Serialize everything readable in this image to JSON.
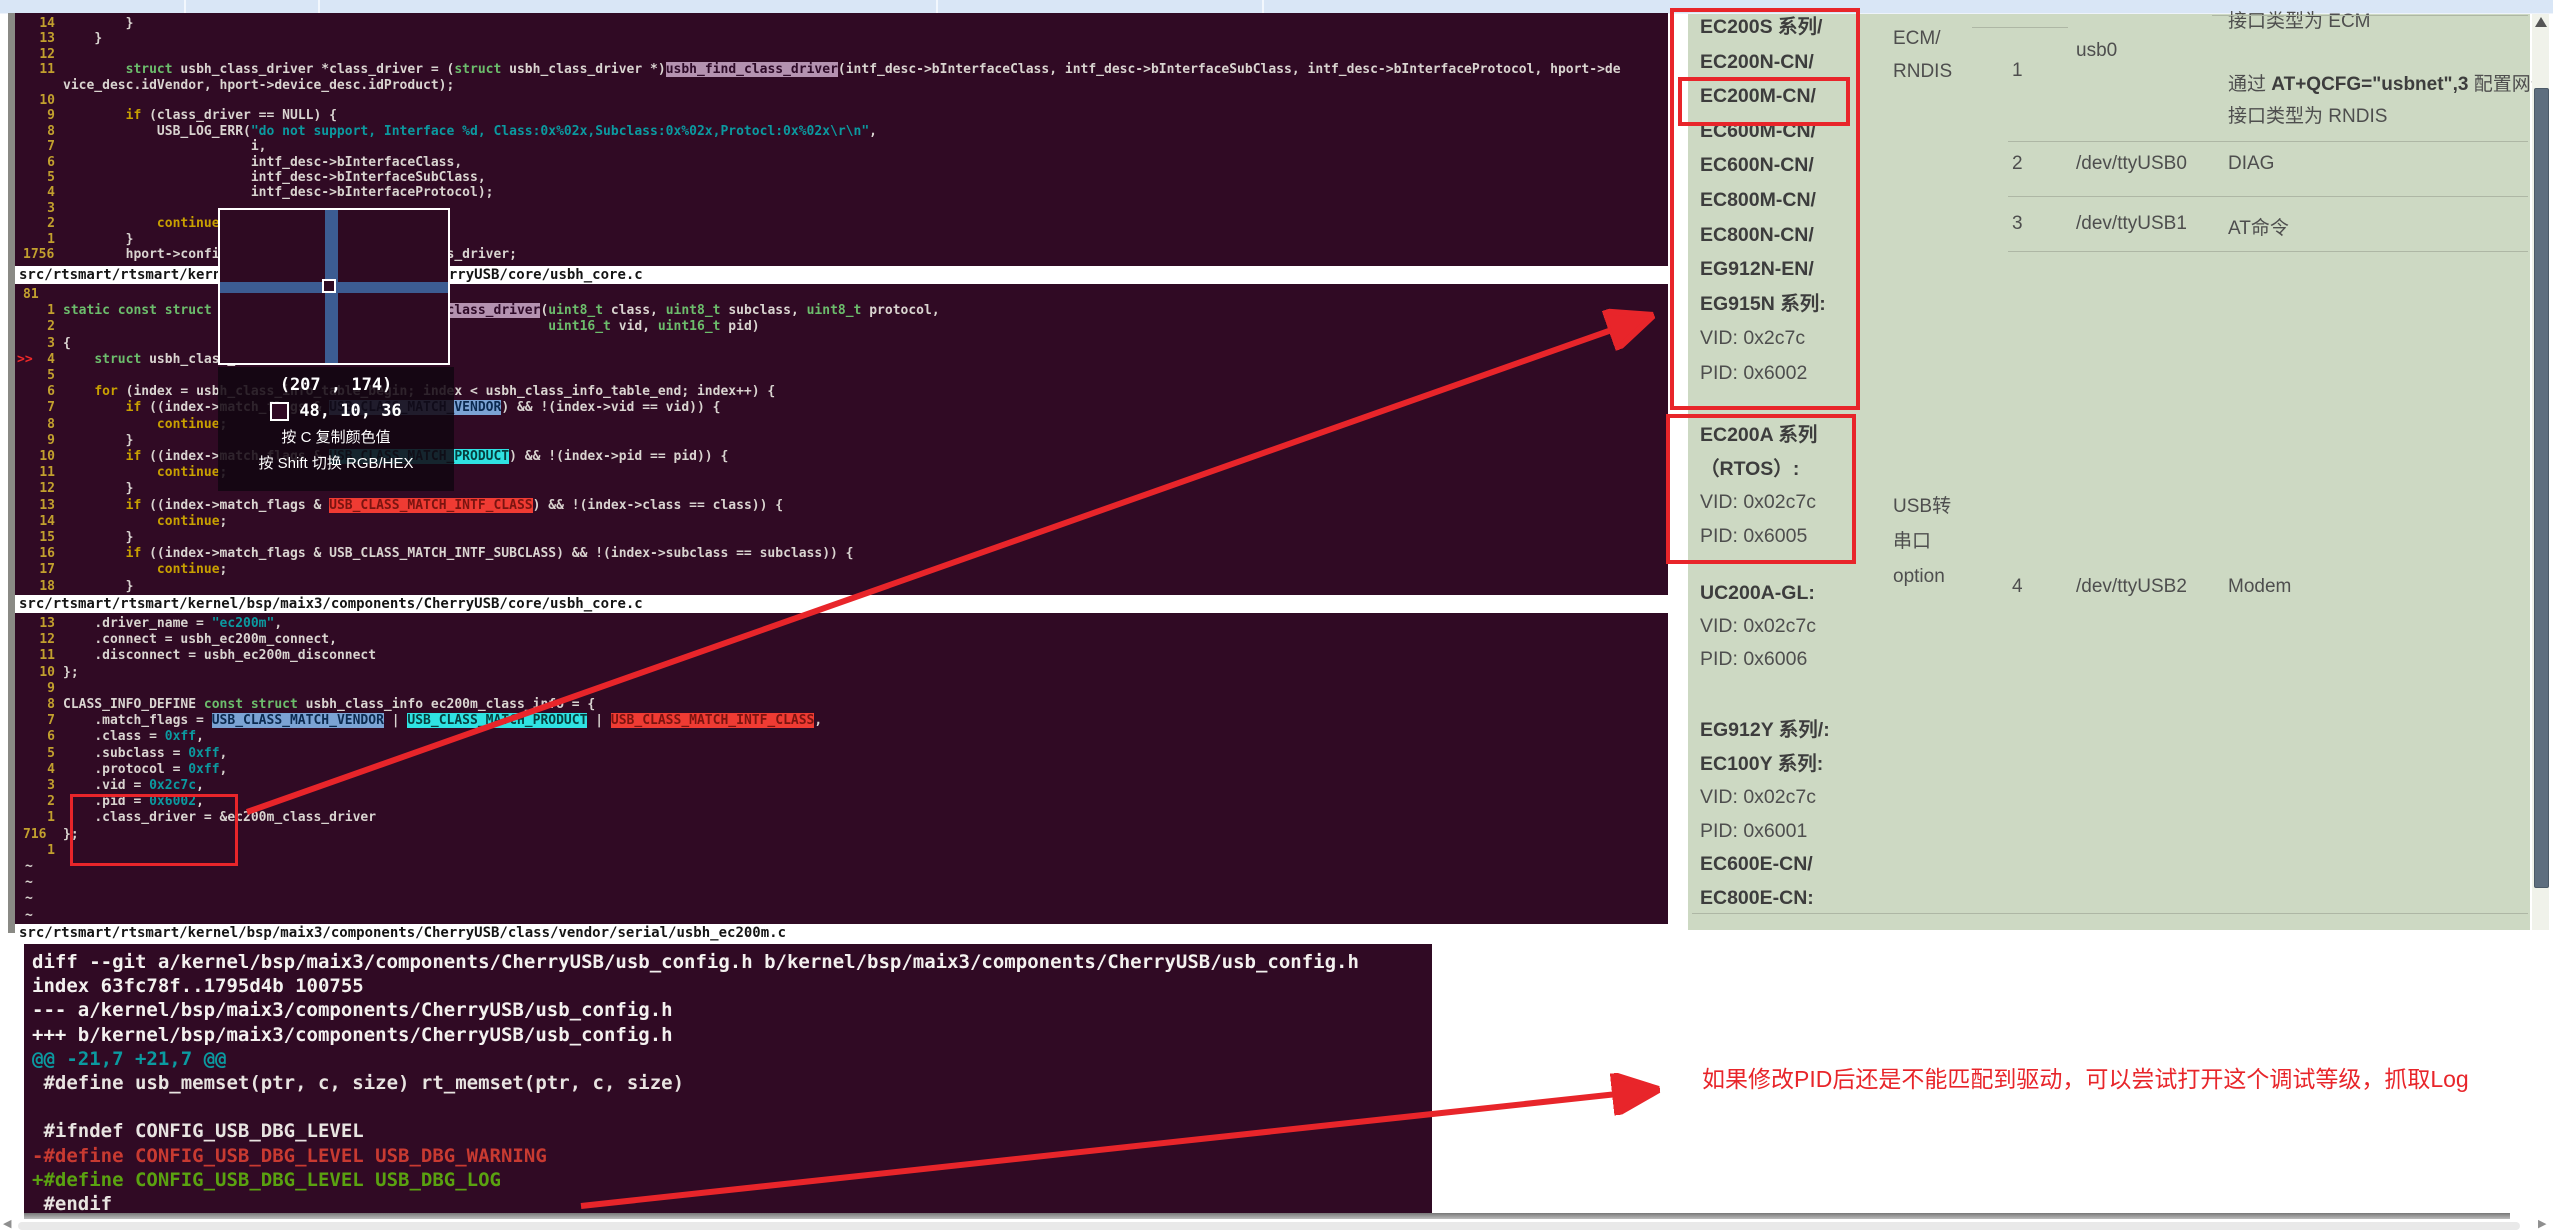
{
  "colors": {
    "red": "#e8252a",
    "term_bg": "#300a24",
    "table_bg": "#cdd9c3",
    "picker_swatch": "#300a24",
    "top_strip": "#d9e6f6"
  },
  "icons": {
    "scroll_up": "▲",
    "scroll_left": "◀",
    "scroll_right": "▶"
  },
  "picker": {
    "coords": "(207 , 174)",
    "rgb": "48,  10,  36",
    "hint_copy": "按 C 复制颜色值",
    "hint_toggle": "按 Shift 切换 RGB/HEX"
  },
  "annotation": "如果修改PID后还是不能匹配到驱动，可以尝试打开这个调试等级，抓取Log",
  "terminal": {
    "sections": [
      {
        "status": "src/rtsmart/rtsmart/kernel/bsp/maix3/components/CherryUSB/core/usbh_core.c",
        "lines": [
          {
            "n": "14",
            "t": [
              [
                "p",
                "        }"
              ]
            ]
          },
          {
            "n": "13",
            "t": [
              [
                "p",
                "    }"
              ]
            ]
          },
          {
            "n": "12",
            "t": []
          },
          {
            "n": "11",
            "t": [
              [
                "p",
                "        "
              ],
              [
                "k",
                "struct"
              ],
              [
                "p",
                " usbh_class_driver *class_driver = ("
              ],
              [
                "k",
                "struct"
              ],
              [
                "p",
                " usbh_class_driver *)"
              ],
              [
                "hf",
                "usbh_find_class_driver"
              ],
              [
                "p",
                "(intf_desc->bInterfaceClass, intf_desc->bInterfaceSubClass, intf_desc->bInterfaceProtocol, hport->device_desc.idVendor, hport->device_desc.idProduct);"
              ]
            ]
          },
          {
            "n": "10",
            "t": []
          },
          {
            "n": "9",
            "t": [
              [
                "p",
                "        "
              ],
              [
                "y",
                "if"
              ],
              [
                "p",
                " (class_driver == NULL) {"
              ]
            ]
          },
          {
            "n": "8",
            "t": [
              [
                "p",
                "            USB_LOG_ERR("
              ],
              [
                "s",
                "\"do not support, Interface %d, Class:0x%02x,Subclass:0x%02x,Protocl:0x%02x\\r\\n\""
              ],
              [
                "p",
                ","
              ]
            ]
          },
          {
            "n": "7",
            "t": [
              [
                "p",
                "                        i,"
              ]
            ]
          },
          {
            "n": "6",
            "t": [
              [
                "p",
                "                        intf_desc->bInterfaceClass,"
              ]
            ]
          },
          {
            "n": "5",
            "t": [
              [
                "p",
                "                        intf_desc->bInterfaceSubClass,"
              ]
            ]
          },
          {
            "n": "4",
            "t": [
              [
                "p",
                "                        intf_desc->bInterfaceProtocol);"
              ]
            ]
          },
          {
            "n": "3",
            "t": []
          },
          {
            "n": "2",
            "t": [
              [
                "p",
                "            "
              ],
              [
                "y",
                "continue"
              ],
              [
                "p",
                ";"
              ]
            ]
          },
          {
            "n": "1",
            "t": [
              [
                "p",
                "        }"
              ]
            ]
          },
          {
            "n": "1756",
            "a": true,
            "t": [
              [
                "p",
                "        hport->config.intf[i].class_driver = class_driver;"
              ]
            ]
          }
        ]
      },
      {
        "status": "src/rtsmart/rtsmart/kernel/bsp/maix3/components/CherryUSB/core/usbh_core.c",
        "lines": [
          {
            "n": "81",
            "a": true,
            "t": []
          },
          {
            "n": "1",
            "t": [
              [
                "k",
                "static const struct"
              ],
              [
                "p",
                " usbh_class_driver *"
              ],
              [
                "hf",
                "usbh_find_class_driver"
              ],
              [
                "p",
                "("
              ],
              [
                "k",
                "uint8_t"
              ],
              [
                "p",
                " class, "
              ],
              [
                "k",
                "uint8_t"
              ],
              [
                "p",
                " subclass, "
              ],
              [
                "k",
                "uint8_t"
              ],
              [
                "p",
                " protocol,"
              ]
            ]
          },
          {
            "n": "2",
            "t": [
              [
                "p",
                "                                                              "
              ],
              [
                "k",
                "uint16_t"
              ],
              [
                "p",
                " vid, "
              ],
              [
                "k",
                "uint16_t"
              ],
              [
                "p",
                " pid)"
              ]
            ]
          },
          {
            "n": "3",
            "t": [
              [
                "p",
                "{"
              ]
            ]
          },
          {
            "n": "4",
            "sign": ">>",
            "t": [
              [
                "p",
                "    "
              ],
              [
                "k",
                "struct"
              ],
              [
                "p",
                " usbh_class_info *index = NULL;"
              ]
            ]
          },
          {
            "n": "5",
            "t": []
          },
          {
            "n": "6",
            "t": [
              [
                "p",
                "    "
              ],
              [
                "y",
                "for"
              ],
              [
                "p",
                " (index = usbh_class_info_table_begin; index < usbh_class_info_table_end; index++) {"
              ]
            ]
          },
          {
            "n": "7",
            "t": [
              [
                "p",
                "        "
              ],
              [
                "y",
                "if"
              ],
              [
                "p",
                " ((index->match_flags & "
              ],
              [
                "hv",
                "USB_CLASS_MATCH_VENDOR"
              ],
              [
                "p",
                ") && !(index->vid == vid)) {"
              ]
            ]
          },
          {
            "n": "8",
            "t": [
              [
                "p",
                "            "
              ],
              [
                "y",
                "continue"
              ],
              [
                "p",
                ";"
              ]
            ]
          },
          {
            "n": "9",
            "t": [
              [
                "p",
                "        }"
              ]
            ]
          },
          {
            "n": "10",
            "t": [
              [
                "p",
                "        "
              ],
              [
                "y",
                "if"
              ],
              [
                "p",
                " ((index->match_flags & "
              ],
              [
                "hp",
                "USB_CLASS_MATCH_PRODUCT"
              ],
              [
                "p",
                ") && !(index->pid == pid)) {"
              ]
            ]
          },
          {
            "n": "11",
            "t": [
              [
                "p",
                "            "
              ],
              [
                "y",
                "continue"
              ],
              [
                "p",
                ";"
              ]
            ]
          },
          {
            "n": "12",
            "t": [
              [
                "p",
                "        }"
              ]
            ]
          },
          {
            "n": "13",
            "t": [
              [
                "p",
                "        "
              ],
              [
                "y",
                "if"
              ],
              [
                "p",
                " ((index->match_flags & "
              ],
              [
                "hc",
                "USB_CLASS_MATCH_INTF_CLASS"
              ],
              [
                "p",
                ") && !(index->class == class)) {"
              ]
            ]
          },
          {
            "n": "14",
            "t": [
              [
                "p",
                "            "
              ],
              [
                "y",
                "continue"
              ],
              [
                "p",
                ";"
              ]
            ]
          },
          {
            "n": "15",
            "t": [
              [
                "p",
                "        }"
              ]
            ]
          },
          {
            "n": "16",
            "t": [
              [
                "p",
                "        "
              ],
              [
                "y",
                "if"
              ],
              [
                "p",
                " ((index->match_flags & USB_CLASS_MATCH_INTF_SUBCLASS) && !(index->subclass == subclass)) {"
              ]
            ]
          },
          {
            "n": "17",
            "t": [
              [
                "p",
                "            "
              ],
              [
                "y",
                "continue"
              ],
              [
                "p",
                ";"
              ]
            ]
          },
          {
            "n": "18",
            "t": [
              [
                "p",
                "        }"
              ]
            ]
          }
        ]
      },
      {
        "status": "src/rtsmart/rtsmart/kernel/bsp/maix3/components/CherryUSB/class/vendor/serial/usbh_ec200m.c",
        "lines": [
          {
            "n": "13",
            "t": [
              [
                "p",
                "    .driver_name = "
              ],
              [
                "s",
                "\"ec200m\""
              ],
              [
                "p",
                ","
              ]
            ]
          },
          {
            "n": "12",
            "t": [
              [
                "p",
                "    .connect = usbh_ec200m_connect,"
              ]
            ]
          },
          {
            "n": "11",
            "t": [
              [
                "p",
                "    .disconnect = usbh_ec200m_disconnect"
              ]
            ]
          },
          {
            "n": "10",
            "t": [
              [
                "p",
                "};"
              ]
            ]
          },
          {
            "n": "9",
            "t": []
          },
          {
            "n": "8",
            "t": [
              [
                "p",
                "CLASS_INFO_DEFINE "
              ],
              [
                "k",
                "const struct"
              ],
              [
                "p",
                " usbh_class_info ec200m_class_info = {"
              ]
            ]
          },
          {
            "n": "7",
            "t": [
              [
                "p",
                "    .match_flags = "
              ],
              [
                "hv",
                "USB_CLASS_MATCH_VENDOR"
              ],
              [
                "p",
                " | "
              ],
              [
                "hp",
                "USB_CLASS_MATCH_PRODUCT"
              ],
              [
                "p",
                " | "
              ],
              [
                "hc",
                "USB_CLASS_MATCH_INTF_CLASS"
              ],
              [
                "p",
                ","
              ]
            ]
          },
          {
            "n": "6",
            "t": [
              [
                "p",
                "    .class = "
              ],
              [
                "s",
                "0xff"
              ],
              [
                "p",
                ","
              ]
            ]
          },
          {
            "n": "5",
            "t": [
              [
                "p",
                "    .subclass = "
              ],
              [
                "s",
                "0xff"
              ],
              [
                "p",
                ","
              ]
            ]
          },
          {
            "n": "4",
            "t": [
              [
                "p",
                "    .protocol = "
              ],
              [
                "s",
                "0xff"
              ],
              [
                "p",
                ","
              ]
            ]
          },
          {
            "n": "3",
            "t": [
              [
                "p",
                "    .vid = "
              ],
              [
                "s",
                "0x2c7c"
              ],
              [
                "p",
                ","
              ]
            ]
          },
          {
            "n": "2",
            "t": [
              [
                "p",
                "    .pid = "
              ],
              [
                "s",
                "0x6002"
              ],
              [
                "p",
                ","
              ]
            ]
          },
          {
            "n": "1",
            "t": [
              [
                "p",
                "    .class_driver = &ec200m_class_driver"
              ]
            ]
          },
          {
            "n": "716",
            "a": true,
            "t": [
              [
                "p",
                "};"
              ]
            ]
          },
          {
            "n": "1",
            "t": []
          },
          {
            "n": "~",
            "tl": true,
            "t": []
          },
          {
            "n": "~",
            "tl": true,
            "t": []
          },
          {
            "n": "~",
            "tl": true,
            "t": []
          },
          {
            "n": "~",
            "tl": true,
            "t": []
          }
        ]
      }
    ]
  },
  "diff": {
    "lines": [
      {
        "c": "h",
        "t": "diff --git a/kernel/bsp/maix3/components/CherryUSB/usb_config.h b/kernel/bsp/maix3/components/CherryUSB/usb_config.h"
      },
      {
        "c": "h",
        "t": "index 63fc78f..1795d4b 100755"
      },
      {
        "c": "h",
        "t": "--- a/kernel/bsp/maix3/components/CherryUSB/usb_config.h"
      },
      {
        "c": "h",
        "t": "+++ b/kernel/bsp/maix3/components/CherryUSB/usb_config.h"
      },
      {
        "c": "u",
        "t": "@@ -21,7 +21,7 @@"
      },
      {
        "c": "x",
        "t": " #define usb_memset(ptr, c, size) rt_memset(ptr, c, size)"
      },
      {
        "c": "x",
        "t": ""
      },
      {
        "c": "x",
        "t": " #ifndef CONFIG_USB_DBG_LEVEL"
      },
      {
        "c": "d",
        "t": "-#define CONFIG_USB_DBG_LEVEL USB_DBG_WARNING"
      },
      {
        "c": "a",
        "t": "+#define CONFIG_USB_DBG_LEVEL USB_DBG_LOG"
      },
      {
        "c": "x",
        "t": " #endif"
      }
    ]
  },
  "table": {
    "col1": {
      "group1": [
        [
          [
            "b",
            "EC200S 系列/"
          ]
        ],
        [
          [
            "b",
            "EC200N-CN/"
          ]
        ],
        [
          [
            "b",
            "EC200M-CN/"
          ]
        ],
        [
          [
            "b",
            "EC600M-CN/"
          ]
        ],
        [
          [
            "b",
            "EC600N-CN/"
          ]
        ],
        [
          [
            "b",
            "EC800M-CN/"
          ]
        ],
        [
          [
            "b",
            "EC800N-CN/"
          ]
        ],
        [
          [
            "b",
            "EG912N-EN/"
          ]
        ],
        [
          [
            "b",
            "EG915N 系列:"
          ]
        ],
        [
          [
            "r",
            "VID: 0x2c7c"
          ]
        ],
        [
          [
            "r",
            "PID: 0x6002"
          ]
        ]
      ],
      "group2": [
        [
          [
            "b",
            "EC200A 系列"
          ]
        ],
        [
          [
            "b",
            "（RTOS）:"
          ]
        ],
        [
          [
            "r",
            "VID: 0x02c7c"
          ]
        ],
        [
          [
            "r",
            "PID: 0x6005"
          ]
        ]
      ],
      "group3": [
        [
          [
            "b",
            "UC200A-GL:"
          ]
        ],
        [
          [
            "r",
            "VID: 0x02c7c"
          ]
        ],
        [
          [
            "r",
            "PID: 0x6006"
          ]
        ]
      ],
      "group4": [
        [
          [
            "b",
            "EG912Y 系列/:"
          ]
        ],
        [
          [
            "b",
            "EC100Y 系列:"
          ]
        ],
        [
          [
            "r",
            "VID: 0x02c7c"
          ]
        ],
        [
          [
            "r",
            "PID: 0x6001"
          ]
        ],
        [
          [
            "b",
            "EC600E-CN/"
          ]
        ],
        [
          [
            "b",
            "EC800E-CN:"
          ]
        ]
      ]
    },
    "col2": {
      "net": [
        [
          [
            "r",
            "ECM/"
          ]
        ],
        [
          [
            "r",
            "RNDIS"
          ]
        ]
      ],
      "serial": [
        [
          [
            "r",
            "USB转"
          ]
        ],
        [
          [
            "r",
            "串口"
          ]
        ],
        [
          [
            "r",
            "option"
          ]
        ]
      ]
    },
    "col3": [
      "1",
      "2",
      "3",
      "4"
    ],
    "col4": [
      "usb0",
      "/dev/ttyUSB0",
      "/dev/ttyUSB1",
      "/dev/ttyUSB2"
    ],
    "col5": {
      "row1": [
        [
          [
            "r",
            "接口类型为 ECM"
          ]
        ],
        [],
        [
          [
            "r",
            "通过 "
          ],
          [
            "b",
            "AT+QCFG=\"usbnet\",3"
          ],
          [
            "r",
            " 配置网卡"
          ]
        ],
        [
          [
            "r",
            "接口类型为 RNDIS"
          ]
        ]
      ],
      "diag": "DIAG",
      "at": "AT命令",
      "modem": "Modem"
    }
  }
}
